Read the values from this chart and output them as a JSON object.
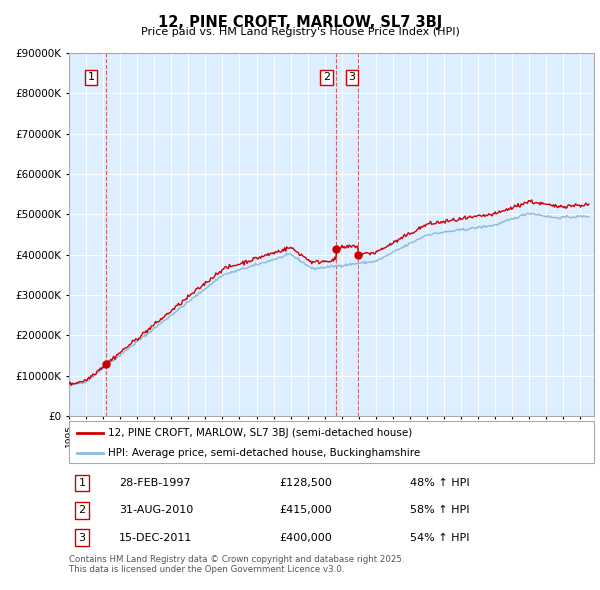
{
  "title": "12, PINE CROFT, MARLOW, SL7 3BJ",
  "subtitle": "Price paid vs. HM Land Registry's House Price Index (HPI)",
  "sales": [
    {
      "num": 1,
      "date": "28-FEB-1997",
      "price": 128500,
      "year": 1997.16,
      "pct": "48%",
      "dir": "↑"
    },
    {
      "num": 2,
      "date": "31-AUG-2010",
      "price": 415000,
      "year": 2010.66,
      "pct": "58%",
      "dir": "↑"
    },
    {
      "num": 3,
      "date": "15-DEC-2011",
      "price": 400000,
      "year": 2011.96,
      "pct": "54%",
      "dir": "↑"
    }
  ],
  "legend_line1": "12, PINE CROFT, MARLOW, SL7 3BJ (semi-detached house)",
  "legend_line2": "HPI: Average price, semi-detached house, Buckinghamshire",
  "footnote": "Contains HM Land Registry data © Crown copyright and database right 2025.\nThis data is licensed under the Open Government Licence v3.0.",
  "red_color": "#cc0000",
  "blue_color": "#88bbdd",
  "ylim_max": 900000,
  "xlim_start": 1995.0,
  "xlim_end": 2025.8,
  "label_positions": [
    [
      1996.3,
      840000,
      "1"
    ],
    [
      2010.1,
      840000,
      "2"
    ],
    [
      2011.6,
      840000,
      "3"
    ]
  ]
}
